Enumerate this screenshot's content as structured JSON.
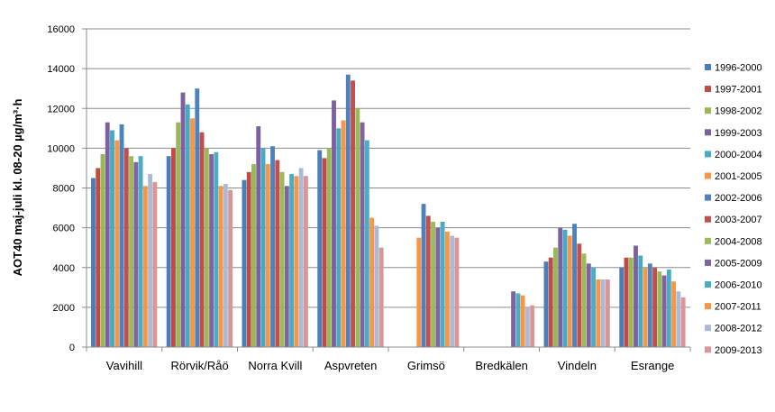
{
  "chart_data": {
    "type": "bar",
    "title": "",
    "ylabel": "AOT40 maj-juli kl. 08-20 µg/m³·h",
    "xlabel": "",
    "ylim": [
      0,
      16000
    ],
    "yticks": [
      0,
      2000,
      4000,
      6000,
      8000,
      10000,
      12000,
      14000,
      16000
    ],
    "grid": true,
    "legend_position": "right",
    "categories": [
      "Vavihill",
      "Rörvik/Råö",
      "Norra Kvill",
      "Aspvreten",
      "Grimsö",
      "Bredkälen",
      "Vindeln",
      "Esrange"
    ],
    "series": [
      {
        "name": "1996-2000",
        "color": "#4a7ebb",
        "values": [
          8500,
          9600,
          8400,
          9900,
          null,
          null,
          4300,
          4000
        ]
      },
      {
        "name": "1997-2001",
        "color": "#be4b48",
        "values": [
          9000,
          10000,
          8800,
          9500,
          null,
          null,
          4500,
          4500
        ]
      },
      {
        "name": "1998-2002",
        "color": "#98b954",
        "values": [
          9700,
          11300,
          9200,
          10000,
          null,
          null,
          5000,
          4500
        ]
      },
      {
        "name": "1999-2003",
        "color": "#7d60a0",
        "values": [
          11300,
          12800,
          11100,
          12400,
          null,
          null,
          6000,
          5100
        ]
      },
      {
        "name": "2000-2004",
        "color": "#46aac5",
        "values": [
          10900,
          12200,
          10000,
          11000,
          null,
          null,
          5900,
          4600
        ]
      },
      {
        "name": "2001-2005",
        "color": "#f79646",
        "values": [
          10400,
          11500,
          9200,
          11400,
          5500,
          null,
          5600,
          4000
        ]
      },
      {
        "name": "2002-2006",
        "color": "#4f81bd",
        "values": [
          11200,
          13000,
          10100,
          13700,
          7200,
          null,
          6200,
          4200
        ]
      },
      {
        "name": "2003-2007",
        "color": "#c0504d",
        "values": [
          10000,
          10800,
          9400,
          13400,
          6600,
          null,
          5200,
          4000
        ]
      },
      {
        "name": "2004-2008",
        "color": "#9bbb59",
        "values": [
          9600,
          10000,
          8800,
          12000,
          6300,
          null,
          4700,
          3800
        ]
      },
      {
        "name": "2005-2009",
        "color": "#8064a2",
        "values": [
          9300,
          9700,
          8100,
          11300,
          6000,
          2800,
          4200,
          3600
        ]
      },
      {
        "name": "2006-2010",
        "color": "#4bacc6",
        "values": [
          9600,
          9800,
          8700,
          10400,
          6300,
          2700,
          4000,
          3900
        ]
      },
      {
        "name": "2007-2011",
        "color": "#f79646",
        "values": [
          8100,
          8100,
          8600,
          6500,
          5800,
          2600,
          3400,
          3300
        ]
      },
      {
        "name": "2008-2012",
        "color": "#aabad7",
        "values": [
          8700,
          8200,
          9000,
          6100,
          5600,
          2000,
          3400,
          2800
        ]
      },
      {
        "name": "2009-2013",
        "color": "#d99694",
        "values": [
          8300,
          7900,
          8600,
          5000,
          5500,
          2100,
          3400,
          2500
        ]
      }
    ]
  }
}
